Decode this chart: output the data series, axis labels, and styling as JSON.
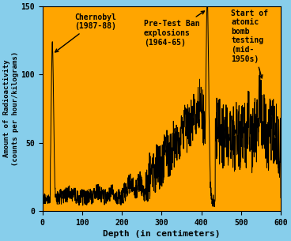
{
  "bg_color": "#FFA500",
  "outer_bg": "#87CEEB",
  "line_color": "#000000",
  "xlabel": "Depth (in centimeters)",
  "ylabel": "Amount of Radioactivity\n(counts per hour/kilograms)",
  "xlim": [
    0,
    600
  ],
  "ylim": [
    0,
    150
  ],
  "xticks": [
    0,
    100,
    200,
    300,
    400,
    500,
    600
  ],
  "yticks": [
    0,
    50,
    100,
    150
  ],
  "chernobyl_x": 25,
  "chernobyl_peak": 120,
  "pretestban_x": 415,
  "pretestban_peak": 148,
  "seed": 17
}
